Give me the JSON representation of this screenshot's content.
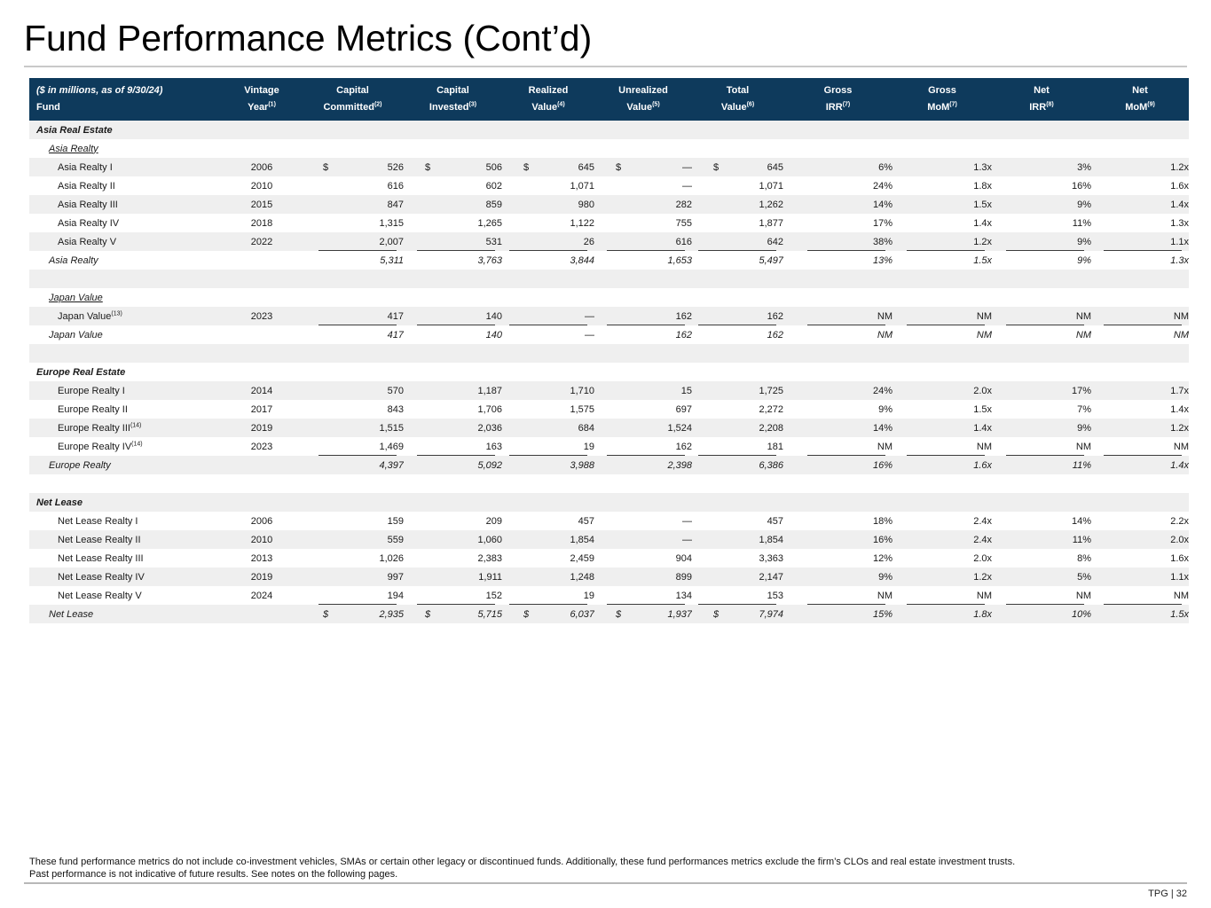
{
  "page": {
    "title": "Fund Performance Metrics (Cont’d)",
    "footnote_line1": "These fund performance metrics do not include co-investment vehicles, SMAs or certain other legacy or discontinued funds. Additionally, these fund performances metrics exclude the firm’s CLOs and real estate investment trusts.",
    "footnote_line2": "Past performance is not indicative of future results. See notes on the following pages.",
    "page_tag": "TPG | 32"
  },
  "colors": {
    "header_bg": "#0e3a5c",
    "header_text": "#ffffff",
    "alt_row_bg": "#efefef",
    "subtotal_rule": "#3c3c3c",
    "title_divider": "#c9c9c9",
    "footer_divider": "#b8b8b8"
  },
  "table": {
    "header": {
      "col0_line1": "($ in millions, as of 9/30/24)",
      "col0_line2": "Fund",
      "columns": [
        {
          "line1": "Vintage",
          "line2": "Year",
          "sup": "(1)"
        },
        {
          "line1": "Capital",
          "line2": "Committed",
          "sup": "(2)"
        },
        {
          "line1": "Capital",
          "line2": "Invested",
          "sup": "(3)"
        },
        {
          "line1": "Realized",
          "line2": "Value",
          "sup": "(4)"
        },
        {
          "line1": "Unrealized",
          "line2": "Value",
          "sup": "(5)"
        },
        {
          "line1": "Total",
          "line2": "Value",
          "sup": "(6)"
        },
        {
          "line1": "Gross",
          "line2": "IRR",
          "sup": "(7)"
        },
        {
          "line1": "Gross",
          "line2": "MoM",
          "sup": "(7)"
        },
        {
          "line1": "Net",
          "line2": "IRR",
          "sup": "(8)"
        },
        {
          "line1": "Net",
          "line2": "MoM",
          "sup": "(9)"
        }
      ]
    },
    "rows": [
      {
        "type": "section",
        "name": "Asia Real Estate"
      },
      {
        "type": "subheader",
        "name": "Asia Realty"
      },
      {
        "type": "data",
        "name": "Asia Realty I",
        "year": "2006",
        "dollar": true,
        "values": [
          "526",
          "506",
          "645",
          "—",
          "645",
          "6%",
          "1.3x",
          "3%",
          "1.2x"
        ]
      },
      {
        "type": "data",
        "name": "Asia Realty II",
        "year": "2010",
        "values": [
          "616",
          "602",
          "1,071",
          "—",
          "1,071",
          "24%",
          "1.8x",
          "16%",
          "1.6x"
        ]
      },
      {
        "type": "data",
        "name": "Asia Realty III",
        "year": "2015",
        "values": [
          "847",
          "859",
          "980",
          "282",
          "1,262",
          "14%",
          "1.5x",
          "9%",
          "1.4x"
        ]
      },
      {
        "type": "data",
        "name": "Asia Realty IV",
        "year": "2018",
        "values": [
          "1,315",
          "1,265",
          "1,122",
          "755",
          "1,877",
          "17%",
          "1.4x",
          "11%",
          "1.3x"
        ]
      },
      {
        "type": "data",
        "name": "Asia Realty V",
        "year": "2022",
        "ruled": true,
        "values": [
          "2,007",
          "531",
          "26",
          "616",
          "642",
          "38%",
          "1.2x",
          "9%",
          "1.1x"
        ]
      },
      {
        "type": "total",
        "name": "Asia Realty",
        "values": [
          "5,311",
          "3,763",
          "3,844",
          "1,653",
          "5,497",
          "13%",
          "1.5x",
          "9%",
          "1.3x"
        ]
      },
      {
        "type": "blank"
      },
      {
        "type": "subheader",
        "name": "Japan Value"
      },
      {
        "type": "data",
        "name": "Japan Value",
        "note": "(13)",
        "year": "2023",
        "ruled": true,
        "values": [
          "417",
          "140",
          "—",
          "162",
          "162",
          "NM",
          "NM",
          "NM",
          "NM"
        ]
      },
      {
        "type": "total",
        "name": "Japan Value",
        "values": [
          "417",
          "140",
          "—",
          "162",
          "162",
          "NM",
          "NM",
          "NM",
          "NM"
        ]
      },
      {
        "type": "blank"
      },
      {
        "type": "section",
        "name": "Europe Real Estate"
      },
      {
        "type": "data",
        "name": "Europe Realty I",
        "year": "2014",
        "values": [
          "570",
          "1,187",
          "1,710",
          "15",
          "1,725",
          "24%",
          "2.0x",
          "17%",
          "1.7x"
        ]
      },
      {
        "type": "data",
        "name": "Europe Realty II",
        "year": "2017",
        "values": [
          "843",
          "1,706",
          "1,575",
          "697",
          "2,272",
          "9%",
          "1.5x",
          "7%",
          "1.4x"
        ]
      },
      {
        "type": "data",
        "name": "Europe Realty III",
        "note": "(14)",
        "year": "2019",
        "values": [
          "1,515",
          "2,036",
          "684",
          "1,524",
          "2,208",
          "14%",
          "1.4x",
          "9%",
          "1.2x"
        ]
      },
      {
        "type": "data",
        "name": "Europe Realty IV",
        "note": "(14)",
        "year": "2023",
        "ruled": true,
        "values": [
          "1,469",
          "163",
          "19",
          "162",
          "181",
          "NM",
          "NM",
          "NM",
          "NM"
        ]
      },
      {
        "type": "total",
        "name": "Europe Realty",
        "values": [
          "4,397",
          "5,092",
          "3,988",
          "2,398",
          "6,386",
          "16%",
          "1.6x",
          "11%",
          "1.4x"
        ]
      },
      {
        "type": "blank"
      },
      {
        "type": "section",
        "name": "Net Lease"
      },
      {
        "type": "data",
        "name": "Net Lease Realty I",
        "year": "2006",
        "values": [
          "159",
          "209",
          "457",
          "—",
          "457",
          "18%",
          "2.4x",
          "14%",
          "2.2x"
        ]
      },
      {
        "type": "data",
        "name": "Net Lease Realty II",
        "year": "2010",
        "values": [
          "559",
          "1,060",
          "1,854",
          "—",
          "1,854",
          "16%",
          "2.4x",
          "11%",
          "2.0x"
        ]
      },
      {
        "type": "data",
        "name": "Net Lease Realty III",
        "year": "2013",
        "values": [
          "1,026",
          "2,383",
          "2,459",
          "904",
          "3,363",
          "12%",
          "2.0x",
          "8%",
          "1.6x"
        ]
      },
      {
        "type": "data",
        "name": "Net Lease Realty IV",
        "year": "2019",
        "values": [
          "997",
          "1,911",
          "1,248",
          "899",
          "2,147",
          "9%",
          "1.2x",
          "5%",
          "1.1x"
        ]
      },
      {
        "type": "data",
        "name": "Net Lease Realty V",
        "year": "2024",
        "ruled": true,
        "values": [
          "194",
          "152",
          "19",
          "134",
          "153",
          "NM",
          "NM",
          "NM",
          "NM"
        ]
      },
      {
        "type": "total",
        "name": "Net Lease",
        "dollar": true,
        "values": [
          "2,935",
          "5,715",
          "6,037",
          "1,937",
          "7,974",
          "15%",
          "1.8x",
          "10%",
          "1.5x"
        ]
      }
    ]
  }
}
